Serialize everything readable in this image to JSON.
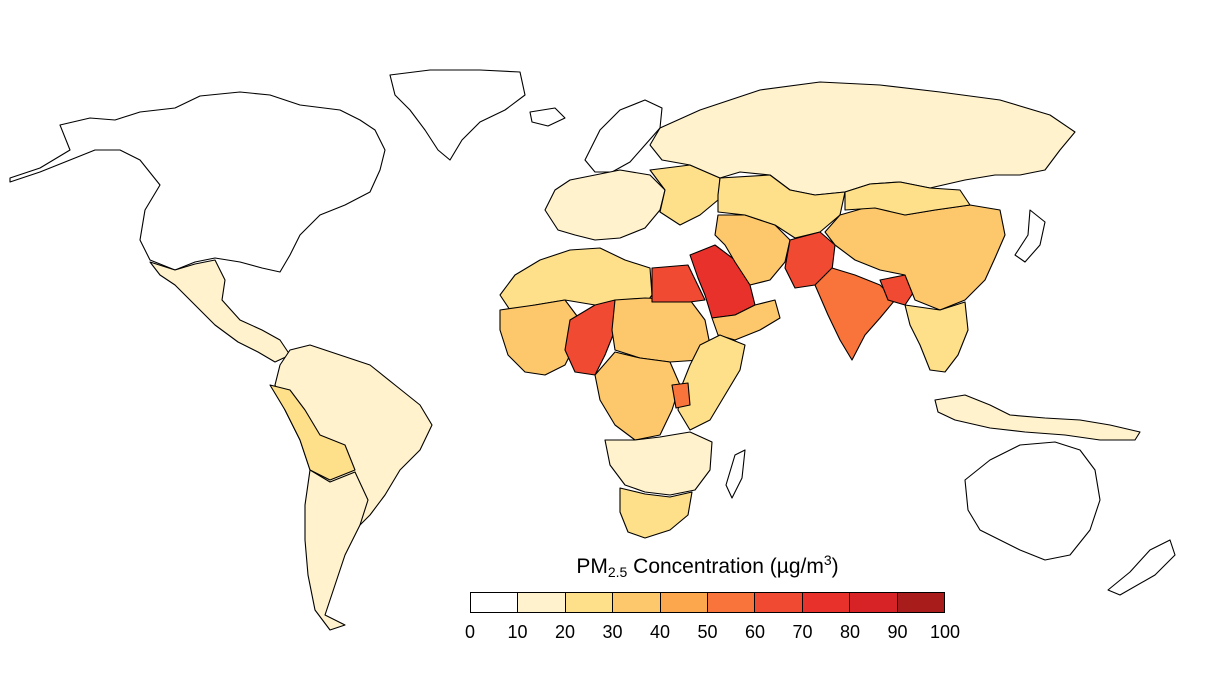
{
  "legend": {
    "title_main": "PM",
    "title_sub": "2.5",
    "title_rest": " Concentration (µg/m",
    "title_sup": "3",
    "title_close": ")",
    "bins": [
      {
        "range": [
          0,
          10
        ],
        "color": "#ffffff"
      },
      {
        "range": [
          10,
          20
        ],
        "color": "#fff2cc"
      },
      {
        "range": [
          20,
          30
        ],
        "color": "#fedf8a"
      },
      {
        "range": [
          30,
          40
        ],
        "color": "#fdc76b"
      },
      {
        "range": [
          40,
          50
        ],
        "color": "#fca64d"
      },
      {
        "range": [
          50,
          60
        ],
        "color": "#f8743a"
      },
      {
        "range": [
          60,
          70
        ],
        "color": "#f04a32"
      },
      {
        "range": [
          70,
          80
        ],
        "color": "#e9312c"
      },
      {
        "range": [
          80,
          90
        ],
        "color": "#d72226"
      },
      {
        "range": [
          90,
          100
        ],
        "color": "#a81c1c"
      }
    ],
    "ticks": [
      "0",
      "10",
      "20",
      "30",
      "40",
      "50",
      "60",
      "70",
      "80",
      "90",
      "100"
    ]
  },
  "regions": [
    {
      "name": "north-america",
      "bin": 0
    },
    {
      "name": "greenland",
      "bin": 0
    },
    {
      "name": "mexico-central-america",
      "bin": 1
    },
    {
      "name": "south-america",
      "bin": 1
    },
    {
      "name": "peru-bolivia",
      "bin": 2
    },
    {
      "name": "southern-cone",
      "bin": 1
    },
    {
      "name": "iceland",
      "bin": 0
    },
    {
      "name": "scandinavia",
      "bin": 0
    },
    {
      "name": "europe",
      "bin": 1
    },
    {
      "name": "eastern-europe",
      "bin": 2
    },
    {
      "name": "russia",
      "bin": 1
    },
    {
      "name": "north-africa-west",
      "bin": 2
    },
    {
      "name": "sahel-west",
      "bin": 3
    },
    {
      "name": "niger-nigeria",
      "bin": 6
    },
    {
      "name": "chad-sudan",
      "bin": 3
    },
    {
      "name": "egypt",
      "bin": 6
    },
    {
      "name": "arabia",
      "bin": 7
    },
    {
      "name": "yemen-oman",
      "bin": 3
    },
    {
      "name": "iran",
      "bin": 3
    },
    {
      "name": "central-africa",
      "bin": 3
    },
    {
      "name": "east-africa",
      "bin": 2
    },
    {
      "name": "uganda",
      "bin": 5
    },
    {
      "name": "southern-africa",
      "bin": 1
    },
    {
      "name": "south-africa",
      "bin": 2
    },
    {
      "name": "madagascar",
      "bin": 0
    },
    {
      "name": "central-asia",
      "bin": 2
    },
    {
      "name": "pakistan",
      "bin": 6
    },
    {
      "name": "india",
      "bin": 5
    },
    {
      "name": "bangladesh",
      "bin": 6
    },
    {
      "name": "china",
      "bin": 3
    },
    {
      "name": "mongolia",
      "bin": 2
    },
    {
      "name": "southeast-asia",
      "bin": 2
    },
    {
      "name": "japan",
      "bin": 0
    },
    {
      "name": "indonesia",
      "bin": 1
    },
    {
      "name": "australia",
      "bin": 0
    },
    {
      "name": "new-zealand",
      "bin": 0
    }
  ]
}
